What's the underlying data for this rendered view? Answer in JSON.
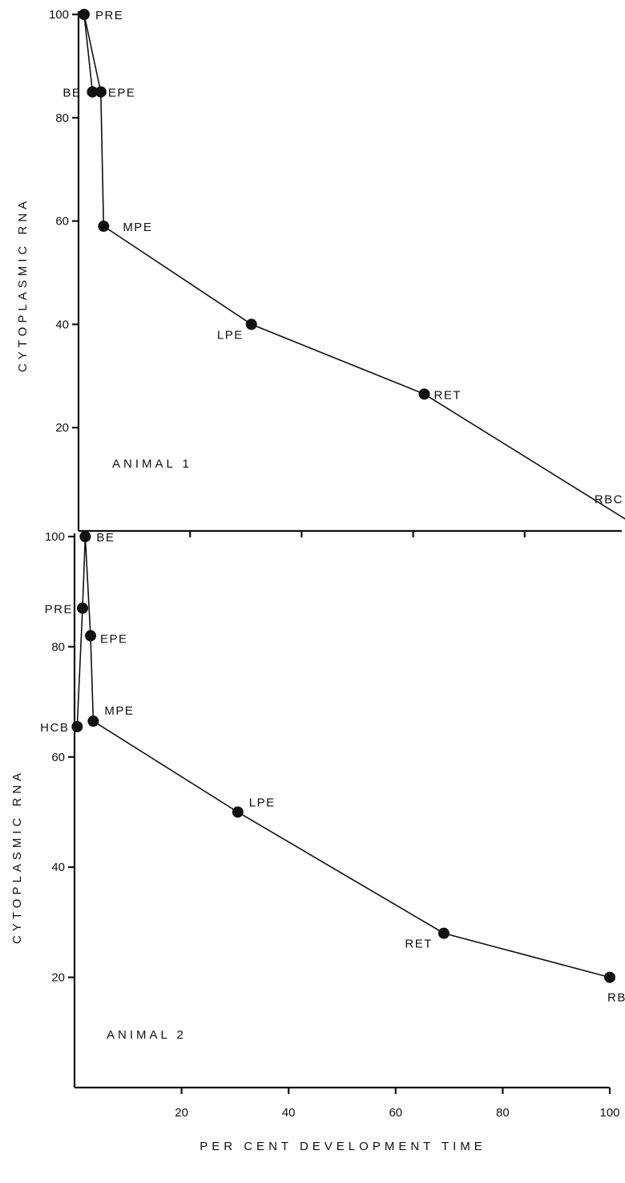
{
  "chart_data": [
    {
      "type": "line",
      "panel_label": "ANIMAL 1",
      "ylabel": "CYTOPLASMIC RNA",
      "xlim": [
        0,
        100
      ],
      "ylim": [
        0,
        100
      ],
      "x_ticks": [
        20,
        40,
        60,
        80
      ],
      "y_ticks": [
        20,
        40,
        60,
        80,
        100
      ],
      "grid": false,
      "points": [
        {
          "label": "PRE",
          "x": 1,
          "y": 100
        },
        {
          "label": "BE",
          "x": 2.5,
          "y": 85
        },
        {
          "label": "EPE",
          "x": 4,
          "y": 85
        },
        {
          "label": "MPE",
          "x": 4.5,
          "y": 59
        },
        {
          "label": "LPE",
          "x": 31,
          "y": 40
        },
        {
          "label": "RET",
          "x": 62,
          "y": 26.5
        },
        {
          "label": "RBC",
          "x": 100,
          "y": 1
        }
      ],
      "path_order": [
        "BE",
        "PRE",
        "EPE",
        "MPE",
        "LPE",
        "RET",
        "RBC"
      ]
    },
    {
      "type": "line",
      "panel_label": "ANIMAL 2",
      "ylabel": "CYTOPLASMIC RNA",
      "xlabel": "PER CENT DEVELOPMENT TIME",
      "xlim": [
        0,
        100
      ],
      "ylim": [
        0,
        100
      ],
      "x_ticks": [
        20,
        40,
        60,
        80,
        100
      ],
      "y_ticks": [
        20,
        40,
        60,
        80,
        100
      ],
      "grid": false,
      "points": [
        {
          "label": "BE",
          "x": 2,
          "y": 100
        },
        {
          "label": "PRE",
          "x": 1.5,
          "y": 87
        },
        {
          "label": "EPE",
          "x": 3,
          "y": 82
        },
        {
          "label": "HCB",
          "x": 0.5,
          "y": 65.5
        },
        {
          "label": "MPE",
          "x": 3.5,
          "y": 66.5
        },
        {
          "label": "LPE",
          "x": 30.5,
          "y": 50
        },
        {
          "label": "RET",
          "x": 69,
          "y": 28
        },
        {
          "label": "RBC",
          "x": 100,
          "y": 20
        }
      ],
      "path_order": [
        "HCB",
        "PRE",
        "BE",
        "EPE",
        "MPE",
        "LPE",
        "RET",
        "RBC"
      ]
    }
  ]
}
